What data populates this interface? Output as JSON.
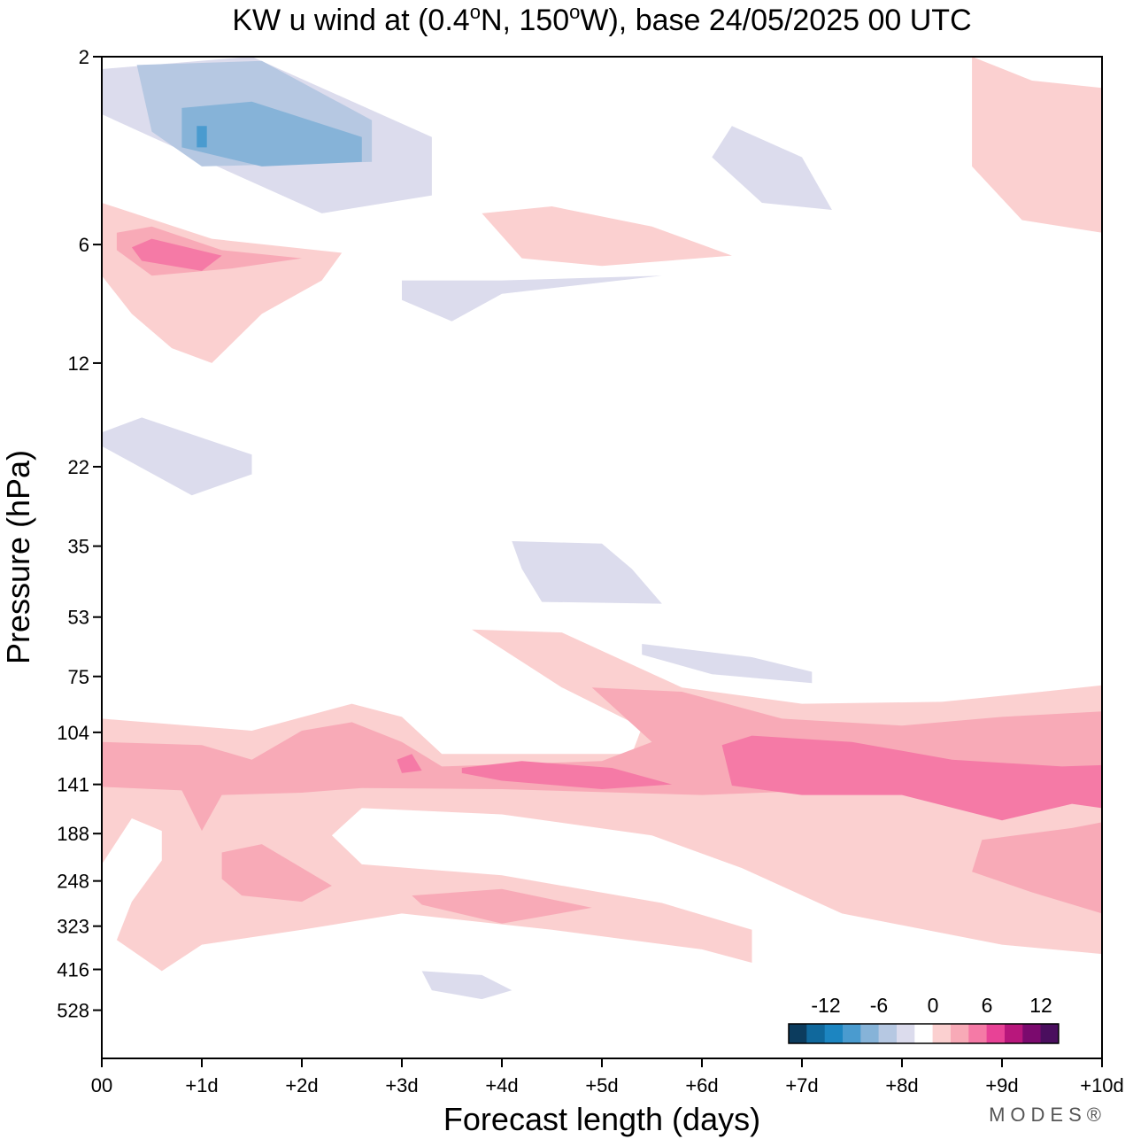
{
  "chart_data": {
    "type": "heatmap",
    "title": "KW u wind at (0.4°N, 150°W),  base 24/05/2025  00 UTC",
    "title_parts": {
      "pre": "KW u wind at (0.4",
      "deg": "o",
      "mid": "N, 150",
      "post": "W),  base 24/05/2025  00 UTC"
    },
    "xlabel": "Forecast length (days)",
    "ylabel": "Pressure (hPa)",
    "x_ticks": [
      "00",
      "+1d",
      "+2d",
      "+3d",
      "+4d",
      "+5d",
      "+6d",
      "+7d",
      "+8d",
      "+9d",
      "+10d"
    ],
    "xlim": [
      0,
      10
    ],
    "y_ticks": [
      "2",
      "6",
      "12",
      "22",
      "35",
      "53",
      "75",
      "104",
      "141",
      "188",
      "248",
      "323",
      "416",
      "528"
    ],
    "colorbar": {
      "tick_labels": [
        "-12",
        "-6",
        "0",
        "6",
        "12"
      ],
      "colors": [
        "#0c3c5e",
        "#10689c",
        "#1c85c1",
        "#4a9bcf",
        "#86b3d8",
        "#b6c8e2",
        "#dcdced",
        "#ffffff",
        "#fbd0d0",
        "#f8aab7",
        "#f57aa6",
        "#e84296",
        "#b8177c",
        "#7b0a6e",
        "#4a0e5e"
      ]
    },
    "regions": [
      {
        "level": -2,
        "level_color": "#dcdced",
        "points": [
          [
            0,
            2.15
          ],
          [
            1.5,
            2.0
          ],
          [
            3.3,
            3.2
          ],
          [
            3.3,
            4.5
          ],
          [
            2.2,
            5.0
          ],
          [
            0.5,
            3.2
          ],
          [
            0,
            2.8
          ]
        ]
      },
      {
        "level": -4,
        "level_color": "#b6c8e2",
        "points": [
          [
            0.35,
            2.1
          ],
          [
            1.6,
            2.05
          ],
          [
            2.7,
            2.9
          ],
          [
            2.7,
            3.7
          ],
          [
            1.0,
            3.8
          ],
          [
            0.5,
            3.1
          ]
        ]
      },
      {
        "level": -6,
        "level_color": "#86b3d8",
        "points": [
          [
            0.8,
            2.7
          ],
          [
            1.5,
            2.6
          ],
          [
            2.6,
            3.2
          ],
          [
            2.6,
            3.7
          ],
          [
            1.6,
            3.8
          ],
          [
            0.8,
            3.4
          ]
        ]
      },
      {
        "level": -8,
        "level_color": "#4a9bcf",
        "points": [
          [
            0.95,
            3.0
          ],
          [
            1.05,
            3.0
          ],
          [
            1.05,
            3.4
          ],
          [
            0.95,
            3.4
          ]
        ]
      },
      {
        "level": -2,
        "level_color": "#dcdced",
        "points": [
          [
            6.3,
            3.0
          ],
          [
            7.0,
            3.6
          ],
          [
            7.3,
            4.9
          ],
          [
            6.6,
            4.7
          ],
          [
            6.1,
            3.6
          ]
        ]
      },
      {
        "level": -2,
        "level_color": "#dcdced",
        "points": [
          [
            3.0,
            7.4
          ],
          [
            4.0,
            7.4
          ],
          [
            5.6,
            7.2
          ],
          [
            4.0,
            8.0
          ],
          [
            3.5,
            9.4
          ],
          [
            3.0,
            8.3
          ]
        ]
      },
      {
        "level": -2,
        "level_color": "#dcdced",
        "points": [
          [
            0,
            18
          ],
          [
            0.4,
            16.5
          ],
          [
            1.5,
            20.5
          ],
          [
            1.5,
            23.0
          ],
          [
            0.9,
            26.0
          ],
          [
            0,
            19.5
          ]
        ]
      },
      {
        "level": -2,
        "level_color": "#dcdced",
        "points": [
          [
            4.1,
            34.0
          ],
          [
            5.0,
            34.5
          ],
          [
            5.3,
            40.0
          ],
          [
            5.6,
            49.0
          ],
          [
            4.4,
            48.5
          ],
          [
            4.2,
            40.0
          ]
        ]
      },
      {
        "level": -2,
        "level_color": "#dcdced",
        "points": [
          [
            5.4,
            62.0
          ],
          [
            6.5,
            67.0
          ],
          [
            7.1,
            73.0
          ],
          [
            7.1,
            78.0
          ],
          [
            6.1,
            74.0
          ],
          [
            5.4,
            66.0
          ]
        ]
      },
      {
        "level": -2,
        "level_color": "#dcdced",
        "points": [
          [
            3.2,
            420.0
          ],
          [
            3.8,
            430.0
          ],
          [
            4.1,
            470.0
          ],
          [
            3.8,
            495.0
          ],
          [
            3.3,
            470.0
          ]
        ]
      },
      {
        "level": 2,
        "level_color": "#fbd0d0",
        "points": [
          [
            0,
            4.7
          ],
          [
            1.1,
            5.8
          ],
          [
            2.4,
            6.3
          ],
          [
            2.2,
            7.4
          ],
          [
            1.6,
            9.0
          ],
          [
            1.1,
            12.0
          ],
          [
            0.7,
            11.0
          ],
          [
            0.3,
            9.0
          ],
          [
            0,
            7.2
          ]
        ]
      },
      {
        "level": 4,
        "level_color": "#f8aab7",
        "points": [
          [
            0.15,
            5.6
          ],
          [
            0.5,
            5.4
          ],
          [
            1.2,
            6.2
          ],
          [
            2.0,
            6.5
          ],
          [
            1.3,
            6.9
          ],
          [
            0.5,
            7.2
          ],
          [
            0.15,
            6.2
          ]
        ]
      },
      {
        "level": 6,
        "level_color": "#f57aa6",
        "points": [
          [
            0.3,
            6.1
          ],
          [
            0.5,
            5.8
          ],
          [
            1.2,
            6.4
          ],
          [
            1.0,
            7.0
          ],
          [
            0.4,
            6.6
          ]
        ]
      },
      {
        "level": 2,
        "level_color": "#fbd0d0",
        "points": [
          [
            3.8,
            5.0
          ],
          [
            4.5,
            4.8
          ],
          [
            5.5,
            5.4
          ],
          [
            6.3,
            6.4
          ],
          [
            5.0,
            6.8
          ],
          [
            4.2,
            6.5
          ]
        ]
      },
      {
        "level": 2,
        "level_color": "#fbd0d0",
        "points": [
          [
            8.7,
            2.0
          ],
          [
            9.3,
            2.3
          ],
          [
            10,
            2.4
          ],
          [
            10,
            5.6
          ],
          [
            9.2,
            5.2
          ],
          [
            8.7,
            3.8
          ]
        ]
      },
      {
        "level": 2,
        "level_color": "#fbd0d0",
        "points": [
          [
            0,
            96.0
          ],
          [
            1.5,
            103.0
          ],
          [
            2.5,
            88.0
          ],
          [
            3.0,
            95.0
          ],
          [
            3.4,
            118.0
          ],
          [
            5.3,
            118.0
          ],
          [
            5.4,
            101.0
          ],
          [
            4.6,
            80.0
          ],
          [
            3.7,
            57.0
          ],
          [
            4.6,
            58.0
          ],
          [
            5.8,
            80.0
          ],
          [
            7.0,
            88.0
          ],
          [
            8.4,
            87.0
          ],
          [
            9.4,
            82.0
          ],
          [
            10,
            79.0
          ],
          [
            10,
            380.0
          ],
          [
            9.0,
            360.0
          ],
          [
            7.4,
            300.0
          ],
          [
            6.4,
            230.0
          ],
          [
            5.5,
            190.0
          ],
          [
            4.0,
            168.0
          ],
          [
            2.6,
            162.0
          ],
          [
            2.3,
            190.0
          ],
          [
            2.6,
            225.0
          ],
          [
            4.0,
            240.0
          ],
          [
            5.6,
            282.0
          ],
          [
            6.5,
            330.0
          ],
          [
            6.5,
            400.0
          ],
          [
            6.0,
            370.0
          ],
          [
            4.5,
            330.0
          ],
          [
            3.0,
            300.0
          ],
          [
            2.0,
            330.0
          ],
          [
            1.0,
            360.0
          ],
          [
            0.6,
            420.0
          ],
          [
            0.15,
            350.0
          ],
          [
            0.3,
            280.0
          ],
          [
            0.6,
            220.0
          ],
          [
            0.6,
            185.0
          ],
          [
            0.3,
            172.0
          ],
          [
            0,
            225.0
          ]
        ]
      },
      {
        "level": 4,
        "level_color": "#f8aab7",
        "points": [
          [
            0,
            110.0
          ],
          [
            1.0,
            112.0
          ],
          [
            1.5,
            122.0
          ],
          [
            2.0,
            103.0
          ],
          [
            2.5,
            98.0
          ],
          [
            3.0,
            110.0
          ],
          [
            3.4,
            127.0
          ],
          [
            5.0,
            123.0
          ],
          [
            5.5,
            110.0
          ],
          [
            4.9,
            80.0
          ],
          [
            5.8,
            82.0
          ],
          [
            6.8,
            96.0
          ],
          [
            8.0,
            100.0
          ],
          [
            9.0,
            95.0
          ],
          [
            10,
            92.0
          ],
          [
            10,
            300.0
          ],
          [
            9.3,
            265.0
          ],
          [
            8.7,
            235.0
          ],
          [
            8.8,
            195.0
          ],
          [
            9.7,
            182.0
          ],
          [
            10,
            176.0
          ],
          [
            10,
            155.0
          ],
          [
            9.0,
            150.0
          ],
          [
            7.5,
            145.0
          ],
          [
            6.0,
            150.0
          ],
          [
            5.2,
            148.0
          ],
          [
            4.0,
            145.0
          ],
          [
            2.6,
            144.0
          ],
          [
            2.0,
            148.0
          ],
          [
            1.2,
            150.0
          ],
          [
            1.0,
            185.0
          ],
          [
            0.8,
            146.0
          ],
          [
            0,
            143.0
          ]
        ]
      },
      {
        "level": 4,
        "level_color": "#f8aab7",
        "points": [
          [
            1.2,
            210.0
          ],
          [
            1.6,
            200.0
          ],
          [
            2.3,
            255.0
          ],
          [
            2.0,
            280.0
          ],
          [
            1.4,
            270.0
          ],
          [
            1.2,
            245.0
          ]
        ]
      },
      {
        "level": 4,
        "level_color": "#f8aab7",
        "points": [
          [
            3.1,
            270.0
          ],
          [
            4.0,
            260.0
          ],
          [
            4.9,
            290.0
          ],
          [
            4.0,
            318.0
          ],
          [
            3.2,
            285.0
          ]
        ]
      },
      {
        "level": 6,
        "level_color": "#f57aa6",
        "points": [
          [
            6.2,
            112.0
          ],
          [
            6.5,
            106.0
          ],
          [
            7.5,
            110.0
          ],
          [
            8.5,
            122.0
          ],
          [
            9.6,
            127.0
          ],
          [
            10,
            126.0
          ],
          [
            10,
            162.0
          ],
          [
            9.7,
            158.0
          ],
          [
            9.0,
            174.0
          ],
          [
            8.0,
            150.0
          ],
          [
            7.0,
            150.0
          ],
          [
            6.3,
            142.0
          ]
        ]
      },
      {
        "level": 6,
        "level_color": "#f57aa6",
        "points": [
          [
            3.6,
            128.0
          ],
          [
            4.2,
            123.0
          ],
          [
            5.1,
            128.0
          ],
          [
            5.7,
            141.0
          ],
          [
            5.0,
            145.0
          ],
          [
            4.0,
            138.0
          ],
          [
            3.6,
            132.0
          ]
        ]
      },
      {
        "level": 6,
        "level_color": "#f57aa6",
        "points": [
          [
            2.95,
            122.0
          ],
          [
            3.1,
            118.0
          ],
          [
            3.2,
            130.0
          ],
          [
            3.0,
            132.0
          ]
        ]
      }
    ]
  },
  "brand": "MODES®"
}
